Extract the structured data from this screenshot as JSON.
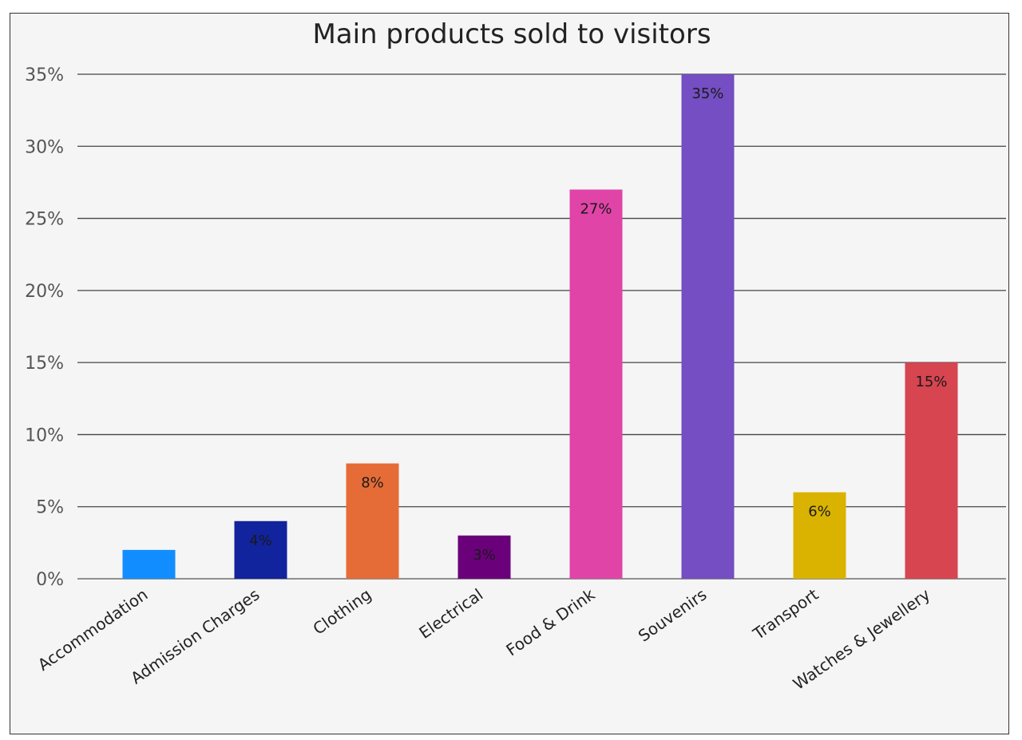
{
  "chart_data": {
    "type": "bar",
    "title": "Main products sold to visitors",
    "xlabel": "",
    "ylabel": "",
    "ylim": [
      0,
      35
    ],
    "yticks": [
      "0%",
      "5%",
      "10%",
      "15%",
      "20%",
      "25%",
      "30%",
      "35%"
    ],
    "grid": true,
    "legend": "none",
    "categories": [
      "Accommodation",
      "Admission Charges",
      "Clothing",
      "Electrical",
      "Food & Drink",
      "Souvenirs",
      "Transport",
      "Watches & Jewellery"
    ],
    "values": [
      2,
      4,
      8,
      3,
      27,
      35,
      6,
      15
    ],
    "data_labels": [
      "",
      "4%",
      "8%",
      "3%",
      "27%",
      "35%",
      "6%",
      "15%"
    ],
    "colors": [
      "#118DFF",
      "#12239E",
      "#E66C37",
      "#6B007B",
      "#E044A7",
      "#744EC2",
      "#D9B300",
      "#D64550"
    ]
  }
}
